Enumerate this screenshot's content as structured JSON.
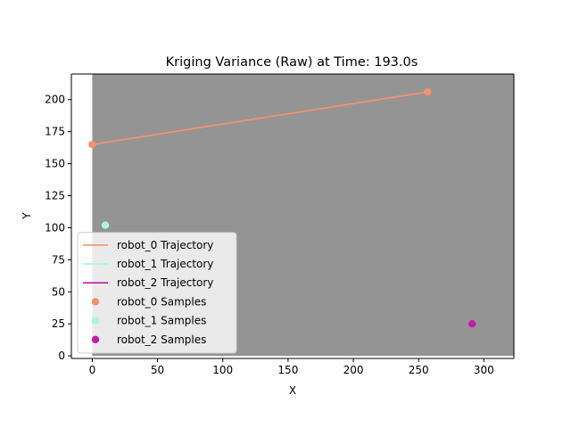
{
  "chart_data": {
    "type": "scatter",
    "title": "Kriging Variance (Raw) at Time: 193.0s",
    "xlabel": "X",
    "ylabel": "Y",
    "xlim": [
      -16,
      323
    ],
    "ylim": [
      -2,
      220
    ],
    "xticks": [
      0,
      50,
      100,
      150,
      200,
      250,
      300
    ],
    "yticks": [
      0,
      25,
      50,
      75,
      100,
      125,
      150,
      175,
      200
    ],
    "field_extent": {
      "x": [
        0,
        323
      ],
      "y": [
        0,
        220
      ]
    },
    "field_color": "#949494",
    "legend_position": "lower left",
    "series": [
      {
        "name": "robot_0 Trajectory",
        "kind": "line",
        "color": "#f4926e",
        "points": [
          [
            0,
            165
          ],
          [
            257,
            206
          ]
        ]
      },
      {
        "name": "robot_1 Trajectory",
        "kind": "line",
        "color": "#a8f7dc",
        "points": [
          [
            10,
            102
          ]
        ]
      },
      {
        "name": "robot_2 Trajectory",
        "kind": "line",
        "color": "#c41ba6",
        "points": [
          [
            291,
            25
          ]
        ]
      },
      {
        "name": "robot_0 Samples",
        "kind": "scatter",
        "color": "#f4926e",
        "points": [
          [
            0,
            165
          ],
          [
            257,
            206
          ]
        ]
      },
      {
        "name": "robot_1 Samples",
        "kind": "scatter",
        "color": "#a8f7dc",
        "points": [
          [
            10,
            102
          ]
        ]
      },
      {
        "name": "robot_2 Samples",
        "kind": "scatter",
        "color": "#c41ba6",
        "points": [
          [
            291,
            25
          ]
        ]
      }
    ]
  }
}
